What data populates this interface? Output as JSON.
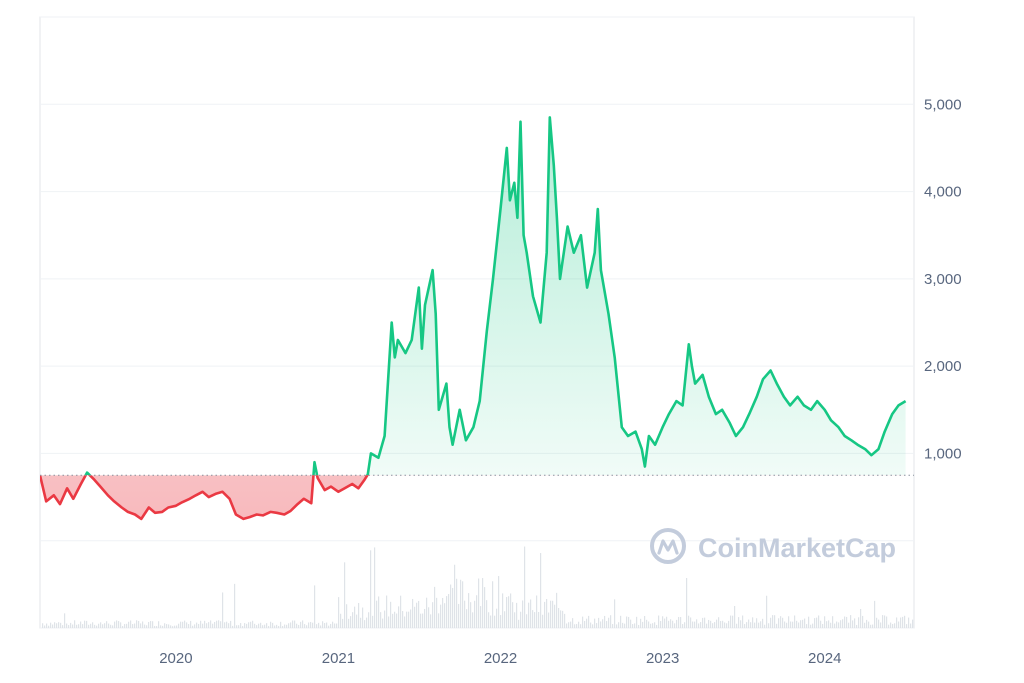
{
  "watermark": {
    "text": "CoinMarketCap",
    "icon": "coinmarketcap-logo-icon"
  },
  "colors": {
    "up_line": "#16c784",
    "up_fill": "#16c784",
    "down_line": "#ea3943",
    "down_fill": "#ea3943",
    "grid": "#eff2f5",
    "frame": "#e3e6ea",
    "baseline": "#8a939f",
    "volume": "#dfe3e8",
    "axis_text": "#58667e",
    "watermark": "#c3ccdc"
  },
  "chart_data": {
    "type": "area",
    "title": "",
    "xlabel": "",
    "ylabel": "",
    "baseline_value": 750,
    "x_range": [
      "2019-03-01",
      "2024-07-20"
    ],
    "y_range": [
      -1000,
      6000
    ],
    "y_ticks": [
      {
        "value": 1000,
        "label": "1,000"
      },
      {
        "value": 2000,
        "label": "2,000"
      },
      {
        "value": 3000,
        "label": "3,000"
      },
      {
        "value": 4000,
        "label": "4,000"
      },
      {
        "value": 5000,
        "label": "5,000"
      }
    ],
    "x_ticks": [
      {
        "date": "2020-01-01",
        "label": "2020"
      },
      {
        "date": "2021-01-01",
        "label": "2021"
      },
      {
        "date": "2022-01-01",
        "label": "2022"
      },
      {
        "date": "2023-01-01",
        "label": "2023"
      },
      {
        "date": "2024-01-01",
        "label": "2024"
      }
    ],
    "grid": true,
    "series": [
      {
        "points": [
          [
            "2019-03-01",
            750
          ],
          [
            "2019-03-15",
            450
          ],
          [
            "2019-04-01",
            520
          ],
          [
            "2019-04-15",
            420
          ],
          [
            "2019-05-01",
            600
          ],
          [
            "2019-05-15",
            480
          ],
          [
            "2019-06-01",
            650
          ],
          [
            "2019-06-15",
            780
          ],
          [
            "2019-07-01",
            700
          ],
          [
            "2019-07-15",
            620
          ],
          [
            "2019-08-01",
            520
          ],
          [
            "2019-08-15",
            450
          ],
          [
            "2019-09-01",
            380
          ],
          [
            "2019-09-15",
            330
          ],
          [
            "2019-10-01",
            300
          ],
          [
            "2019-10-15",
            250
          ],
          [
            "2019-11-01",
            380
          ],
          [
            "2019-11-15",
            320
          ],
          [
            "2019-12-01",
            330
          ],
          [
            "2019-12-15",
            380
          ],
          [
            "2020-01-01",
            400
          ],
          [
            "2020-01-15",
            440
          ],
          [
            "2020-02-01",
            480
          ],
          [
            "2020-02-15",
            520
          ],
          [
            "2020-03-01",
            560
          ],
          [
            "2020-03-15",
            500
          ],
          [
            "2020-04-01",
            540
          ],
          [
            "2020-04-15",
            560
          ],
          [
            "2020-05-01",
            480
          ],
          [
            "2020-05-15",
            300
          ],
          [
            "2020-06-01",
            250
          ],
          [
            "2020-06-15",
            270
          ],
          [
            "2020-07-01",
            300
          ],
          [
            "2020-07-15",
            290
          ],
          [
            "2020-08-01",
            330
          ],
          [
            "2020-08-15",
            320
          ],
          [
            "2020-09-01",
            300
          ],
          [
            "2020-09-15",
            340
          ],
          [
            "2020-10-01",
            420
          ],
          [
            "2020-10-15",
            480
          ],
          [
            "2020-11-01",
            430
          ],
          [
            "2020-11-08",
            900
          ],
          [
            "2020-11-15",
            720
          ],
          [
            "2020-12-01",
            580
          ],
          [
            "2020-12-15",
            620
          ],
          [
            "2021-01-01",
            560
          ],
          [
            "2021-01-15",
            600
          ],
          [
            "2021-02-01",
            650
          ],
          [
            "2021-02-15",
            600
          ],
          [
            "2021-03-01",
            700
          ],
          [
            "2021-03-08",
            760
          ],
          [
            "2021-03-15",
            1000
          ],
          [
            "2021-04-01",
            950
          ],
          [
            "2021-04-15",
            1200
          ],
          [
            "2021-05-01",
            2500
          ],
          [
            "2021-05-08",
            2100
          ],
          [
            "2021-05-15",
            2300
          ],
          [
            "2021-06-01",
            2150
          ],
          [
            "2021-06-15",
            2300
          ],
          [
            "2021-07-01",
            2900
          ],
          [
            "2021-07-08",
            2200
          ],
          [
            "2021-07-15",
            2700
          ],
          [
            "2021-08-01",
            3100
          ],
          [
            "2021-08-08",
            2600
          ],
          [
            "2021-08-15",
            1500
          ],
          [
            "2021-09-01",
            1800
          ],
          [
            "2021-09-08",
            1300
          ],
          [
            "2021-09-15",
            1100
          ],
          [
            "2021-10-01",
            1500
          ],
          [
            "2021-10-15",
            1150
          ],
          [
            "2021-11-01",
            1300
          ],
          [
            "2021-11-15",
            1600
          ],
          [
            "2021-12-01",
            2400
          ],
          [
            "2021-12-15",
            3000
          ],
          [
            "2022-01-01",
            3800
          ],
          [
            "2022-01-15",
            4500
          ],
          [
            "2022-01-22",
            3900
          ],
          [
            "2022-02-01",
            4100
          ],
          [
            "2022-02-08",
            3700
          ],
          [
            "2022-02-15",
            4800
          ],
          [
            "2022-02-22",
            3500
          ],
          [
            "2022-03-01",
            3300
          ],
          [
            "2022-03-15",
            2800
          ],
          [
            "2022-04-01",
            2500
          ],
          [
            "2022-04-15",
            3300
          ],
          [
            "2022-04-22",
            4850
          ],
          [
            "2022-05-01",
            4300
          ],
          [
            "2022-05-08",
            3700
          ],
          [
            "2022-05-15",
            3000
          ],
          [
            "2022-06-01",
            3600
          ],
          [
            "2022-06-15",
            3300
          ],
          [
            "2022-07-01",
            3500
          ],
          [
            "2022-07-15",
            2900
          ],
          [
            "2022-08-01",
            3300
          ],
          [
            "2022-08-08",
            3800
          ],
          [
            "2022-08-15",
            3100
          ],
          [
            "2022-09-01",
            2600
          ],
          [
            "2022-09-15",
            2100
          ],
          [
            "2022-10-01",
            1300
          ],
          [
            "2022-10-15",
            1200
          ],
          [
            "2022-11-01",
            1250
          ],
          [
            "2022-11-15",
            1050
          ],
          [
            "2022-11-22",
            850
          ],
          [
            "2022-12-01",
            1200
          ],
          [
            "2022-12-15",
            1100
          ],
          [
            "2023-01-01",
            1300
          ],
          [
            "2023-01-15",
            1450
          ],
          [
            "2023-02-01",
            1600
          ],
          [
            "2023-02-15",
            1550
          ],
          [
            "2023-03-01",
            2250
          ],
          [
            "2023-03-08",
            2000
          ],
          [
            "2023-03-15",
            1800
          ],
          [
            "2023-04-01",
            1900
          ],
          [
            "2023-04-15",
            1650
          ],
          [
            "2023-05-01",
            1450
          ],
          [
            "2023-05-15",
            1500
          ],
          [
            "2023-06-01",
            1350
          ],
          [
            "2023-06-15",
            1200
          ],
          [
            "2023-07-01",
            1300
          ],
          [
            "2023-07-15",
            1450
          ],
          [
            "2023-08-01",
            1650
          ],
          [
            "2023-08-15",
            1850
          ],
          [
            "2023-09-01",
            1950
          ],
          [
            "2023-09-15",
            1800
          ],
          [
            "2023-10-01",
            1650
          ],
          [
            "2023-10-15",
            1550
          ],
          [
            "2023-11-01",
            1650
          ],
          [
            "2023-11-15",
            1550
          ],
          [
            "2023-12-01",
            1500
          ],
          [
            "2023-12-15",
            1600
          ],
          [
            "2024-01-01",
            1500
          ],
          [
            "2024-01-15",
            1380
          ],
          [
            "2024-02-01",
            1300
          ],
          [
            "2024-02-15",
            1200
          ],
          [
            "2024-03-01",
            1150
          ],
          [
            "2024-03-15",
            1100
          ],
          [
            "2024-04-01",
            1050
          ],
          [
            "2024-04-15",
            980
          ],
          [
            "2024-05-01",
            1050
          ],
          [
            "2024-05-15",
            1250
          ],
          [
            "2024-06-01",
            1450
          ],
          [
            "2024-06-15",
            1550
          ],
          [
            "2024-07-01",
            1600
          ]
        ]
      }
    ]
  }
}
